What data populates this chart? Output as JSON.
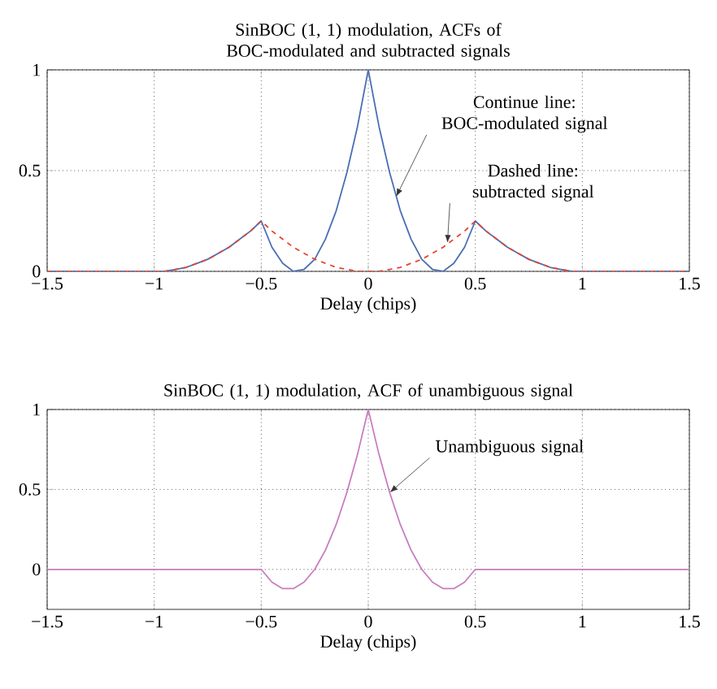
{
  "chart_data": [
    {
      "type": "line",
      "title": "SinBOC (1, 1) modulation, ACFs of BOC-modulated and subtracted signals",
      "xlabel": "Delay (chips)",
      "x": [
        -1.5,
        -1,
        -0.95,
        -0.9,
        -0.85,
        -0.8,
        -0.75,
        -0.7,
        -0.65,
        -0.6,
        -0.55,
        -0.5,
        -0.45,
        -0.4,
        -0.35,
        -0.3,
        -0.25,
        -0.2,
        -0.15,
        -0.1,
        -0.05,
        0,
        0.05,
        0.1,
        0.15,
        0.2,
        0.25,
        0.3,
        0.35,
        0.4,
        0.45,
        0.5,
        0.55,
        0.6,
        0.65,
        0.7,
        0.75,
        0.8,
        0.85,
        0.9,
        0.95,
        1,
        1.5
      ],
      "series": [
        {
          "color": "#4a6fb5",
          "line_style": "solid",
          "values": [
            0,
            0,
            0,
            0.01,
            0.02,
            0.04,
            0.06,
            0.09,
            0.12,
            0.16,
            0.2,
            0.25,
            0.12,
            0.04,
            0,
            0.01,
            0.06,
            0.16,
            0.3,
            0.49,
            0.72,
            1,
            0.72,
            0.49,
            0.3,
            0.16,
            0.06,
            0.01,
            0,
            0.04,
            0.12,
            0.25,
            0.2,
            0.16,
            0.12,
            0.09,
            0.06,
            0.04,
            0.02,
            0.01,
            0,
            0,
            0
          ]
        },
        {
          "color": "#e8432e",
          "line_style": "dashed",
          "values": [
            0,
            0,
            0,
            0.01,
            0.02,
            0.04,
            0.06,
            0.09,
            0.12,
            0.16,
            0.2,
            0.25,
            0.2,
            0.16,
            0.12,
            0.09,
            0.06,
            0.04,
            0.02,
            0.01,
            0,
            0,
            0,
            0.01,
            0.02,
            0.04,
            0.06,
            0.09,
            0.12,
            0.16,
            0.2,
            0.25,
            0.2,
            0.16,
            0.12,
            0.09,
            0.06,
            0.04,
            0.02,
            0.01,
            0,
            0,
            0
          ]
        }
      ],
      "xlim": [
        -1.5,
        1.5
      ],
      "ylim": [
        0,
        1
      ],
      "xticks": [
        {
          "value": -1.5,
          "label": "−1.5"
        },
        {
          "value": -1,
          "label": "−1"
        },
        {
          "value": -0.5,
          "label": "−0.5"
        },
        0,
        0.5,
        1,
        1.5
      ],
      "yticks": [
        0,
        0.5,
        1
      ],
      "grid": true,
      "annotations": [
        {
          "text": "Continue line: BOC-modulated signal",
          "x": 0.13,
          "y": 0.37
        },
        {
          "text": "Dashed line: subtracted signal",
          "x": 0.37,
          "y": 0.14
        }
      ]
    },
    {
      "type": "line",
      "title": "SinBOC (1, 1) modulation, ACF of unambiguous signal",
      "xlabel": "Delay (chips)",
      "x": [
        -1.5,
        -0.5,
        -0.45,
        -0.4,
        -0.35,
        -0.3,
        -0.25,
        -0.2,
        -0.15,
        -0.1,
        -0.05,
        0,
        0.05,
        0.1,
        0.15,
        0.2,
        0.25,
        0.3,
        0.35,
        0.4,
        0.45,
        0.5,
        1.5
      ],
      "series": [
        {
          "color": "#c87dc0",
          "line_style": "solid",
          "values": [
            0,
            0,
            -0.08,
            -0.12,
            -0.12,
            -0.08,
            0,
            0.12,
            0.28,
            0.48,
            0.72,
            1,
            0.72,
            0.48,
            0.28,
            0.12,
            0,
            -0.08,
            -0.12,
            -0.12,
            -0.08,
            0,
            0
          ]
        }
      ],
      "xlim": [
        -1.5,
        1.5
      ],
      "ylim": [
        -0.25,
        1
      ],
      "xticks": [
        {
          "value": -1.5,
          "label": "−1.5"
        },
        {
          "value": -1,
          "label": "−1"
        },
        {
          "value": -0.5,
          "label": "−0.5"
        },
        0,
        0.5,
        1,
        1.5
      ],
      "yticks": [
        0,
        0.5,
        1
      ],
      "grid": true,
      "annotations": [
        {
          "text": "Unambiguous signal",
          "x": 0.1,
          "y": 0.48
        }
      ]
    }
  ]
}
